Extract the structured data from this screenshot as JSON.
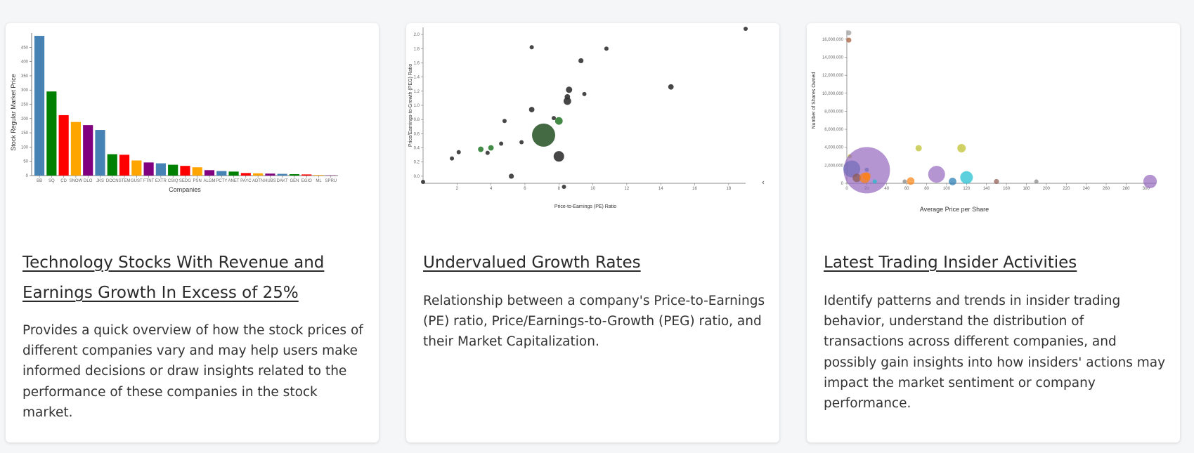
{
  "cards": [
    {
      "title": "Technology Stocks With Revenue and Earnings Growth In Excess of 25%",
      "description": "Provides a quick overview of how the stock prices of different companies vary and may help users make informed decisions or draw insights related to the performance of these companies in the stock market."
    },
    {
      "title": "Undervalued Growth Rates",
      "description": "Relationship between a company's Price-to-Earnings (PE) ratio, Price/Earnings-to-Growth (PEG) ratio, and their Market Capitalization."
    },
    {
      "title": "Latest Trading Insider Activities",
      "description": "Identify patterns and trends in insider trading behavior, understand the distribution of transactions across different companies, and possibly gain insights into how insiders' actions may impact the market sentiment or company performance."
    }
  ],
  "chart_data": [
    {
      "type": "bar",
      "xlabel": "Companies",
      "ylabel": "Stock Regular Market Price",
      "ylim": [
        0,
        500
      ],
      "yticks": [
        0,
        50,
        100,
        150,
        200,
        250,
        300,
        350,
        400,
        450
      ],
      "categories": [
        "BB",
        "SQ",
        "CD",
        "SNOW",
        "DLO",
        "JKS",
        "DOCN",
        "STEM",
        "GUST",
        "FTNT",
        "EXTR",
        "CSIQ",
        "SEDG",
        "PSN",
        "ALGM",
        "PCTY",
        "ANET",
        "PAYC",
        "ADTN",
        "HUBS",
        "DAKT",
        "GEN",
        "EGIO",
        "ML",
        "SPRU"
      ],
      "values": [
        490,
        295,
        212,
        188,
        177,
        160,
        75,
        73,
        53,
        46,
        43,
        38,
        34,
        29,
        19,
        16,
        14,
        9,
        8,
        7,
        6,
        5,
        4,
        2,
        1
      ],
      "colors": [
        "#4682b4",
        "#008000",
        "#ff0000",
        "#ffa500",
        "#800080",
        "#4682b4",
        "#008000",
        "#ff0000",
        "#ffa500",
        "#800080",
        "#4682b4",
        "#008000",
        "#ff0000",
        "#ffa500",
        "#800080",
        "#4682b4",
        "#008000",
        "#ff0000",
        "#ffa500",
        "#800080",
        "#4682b4",
        "#008000",
        "#ff0000",
        "#ffa500",
        "#800080"
      ]
    },
    {
      "type": "scatter",
      "xlabel": "Price-to-Earnings (PE) Ratio",
      "ylabel": "Price/Earnings-to-Growth (PEG) Ratio",
      "xlim": [
        0,
        19
      ],
      "ylim": [
        -0.1,
        2.1
      ],
      "xticks": [
        2,
        4,
        6,
        8,
        10,
        12,
        14,
        16,
        18
      ],
      "yticks": [
        0.0,
        0.2,
        0.4,
        0.6,
        0.8,
        1.0,
        1.2,
        1.4,
        1.6,
        1.8,
        2.0
      ],
      "points": [
        {
          "x": 0.0,
          "y": -0.08,
          "size": 1,
          "color": "#333333"
        },
        {
          "x": 1.7,
          "y": 0.25,
          "size": 1,
          "color": "#333333"
        },
        {
          "x": 2.1,
          "y": 0.34,
          "size": 1,
          "color": "#333333"
        },
        {
          "x": 3.4,
          "y": 0.38,
          "size": 1.3,
          "color": "#2e7d32"
        },
        {
          "x": 3.8,
          "y": 0.33,
          "size": 1,
          "color": "#333333"
        },
        {
          "x": 4.0,
          "y": 0.4,
          "size": 1.3,
          "color": "#2e7d32"
        },
        {
          "x": 4.6,
          "y": 0.46,
          "size": 1,
          "color": "#333333"
        },
        {
          "x": 4.8,
          "y": 0.78,
          "size": 1,
          "color": "#333333"
        },
        {
          "x": 5.2,
          "y": 0.0,
          "size": 1.2,
          "color": "#333333"
        },
        {
          "x": 5.8,
          "y": 0.48,
          "size": 1,
          "color": "#333333"
        },
        {
          "x": 6.4,
          "y": 1.82,
          "size": 1,
          "color": "#333333"
        },
        {
          "x": 6.4,
          "y": 0.94,
          "size": 1.3,
          "color": "#333333"
        },
        {
          "x": 7.1,
          "y": 0.58,
          "size": 5.5,
          "color": "#2f5a2f"
        },
        {
          "x": 7.7,
          "y": 0.82,
          "size": 1,
          "color": "#333333"
        },
        {
          "x": 8.0,
          "y": 0.78,
          "size": 1.8,
          "color": "#2e7d32"
        },
        {
          "x": 8.0,
          "y": 0.28,
          "size": 2.5,
          "color": "#333333"
        },
        {
          "x": 8.3,
          "y": -0.15,
          "size": 1,
          "color": "#333333"
        },
        {
          "x": 8.5,
          "y": 1.06,
          "size": 1.8,
          "color": "#333333"
        },
        {
          "x": 8.5,
          "y": 1.12,
          "size": 1.3,
          "color": "#333333"
        },
        {
          "x": 8.6,
          "y": 1.22,
          "size": 1.5,
          "color": "#333333"
        },
        {
          "x": 9.3,
          "y": 1.63,
          "size": 1.2,
          "color": "#333333"
        },
        {
          "x": 9.5,
          "y": 1.16,
          "size": 1,
          "color": "#333333"
        },
        {
          "x": 10.8,
          "y": 1.8,
          "size": 1,
          "color": "#333333"
        },
        {
          "x": 14.6,
          "y": 1.26,
          "size": 1.3,
          "color": "#333333"
        },
        {
          "x": 19.0,
          "y": 2.08,
          "size": 1,
          "color": "#333333"
        }
      ]
    },
    {
      "type": "scatter",
      "xlabel": "Average Price per Share",
      "ylabel": "Number of Shares Owned",
      "xlim": [
        0,
        310
      ],
      "ylim": [
        0,
        17000000
      ],
      "xticks": [
        0,
        20,
        40,
        60,
        80,
        100,
        120,
        140,
        160,
        180,
        200,
        220,
        240,
        260,
        280,
        300
      ],
      "yticks": [
        0,
        2000000,
        4000000,
        6000000,
        8000000,
        10000000,
        12000000,
        14000000,
        16000000
      ],
      "ytick_labels": [
        "0",
        "2,000,000",
        "4,000,000",
        "6,000,000",
        "8,000,000",
        "10,000,000",
        "12,000,000",
        "14,000,000",
        "16,000,000"
      ],
      "points": [
        {
          "x": 2,
          "y": 16700000,
          "size": 1.2,
          "color": "#999999"
        },
        {
          "x": 2,
          "y": 15900000,
          "size": 1.2,
          "color": "#a0522d"
        },
        {
          "x": 3,
          "y": 3000000,
          "size": 1,
          "color": "#bcbd22"
        },
        {
          "x": 5,
          "y": 1600000,
          "size": 4,
          "color": "#1f77b4"
        },
        {
          "x": 20,
          "y": 1500000,
          "size": 1,
          "color": "#1f77b4"
        },
        {
          "x": 20,
          "y": 1450000,
          "size": 11,
          "color": "#9467bd"
        },
        {
          "x": 10,
          "y": 600000,
          "size": 2,
          "color": "#8c564b"
        },
        {
          "x": 18,
          "y": 600000,
          "size": 2.5,
          "color": "#ff7f0e"
        },
        {
          "x": 20,
          "y": 800000,
          "size": 1.8,
          "color": "#ff7f0e"
        },
        {
          "x": 28,
          "y": 200000,
          "size": 1,
          "color": "#17becf"
        },
        {
          "x": 58,
          "y": 200000,
          "size": 1,
          "color": "#7f7f7f"
        },
        {
          "x": 64,
          "y": 250000,
          "size": 1.8,
          "color": "#ff7f0e"
        },
        {
          "x": 72,
          "y": 3900000,
          "size": 1.5,
          "color": "#bcbd22"
        },
        {
          "x": 90,
          "y": 1000000,
          "size": 4,
          "color": "#9467bd"
        },
        {
          "x": 106,
          "y": 200000,
          "size": 1.8,
          "color": "#1f77b4"
        },
        {
          "x": 115,
          "y": 3900000,
          "size": 2,
          "color": "#bcbd22"
        },
        {
          "x": 120,
          "y": 650000,
          "size": 3,
          "color": "#17becf"
        },
        {
          "x": 150,
          "y": 200000,
          "size": 1.2,
          "color": "#8c564b"
        },
        {
          "x": 190,
          "y": 200000,
          "size": 1,
          "color": "#7f7f7f"
        },
        {
          "x": 304,
          "y": 200000,
          "size": 3.2,
          "color": "#9467bd"
        }
      ]
    }
  ]
}
